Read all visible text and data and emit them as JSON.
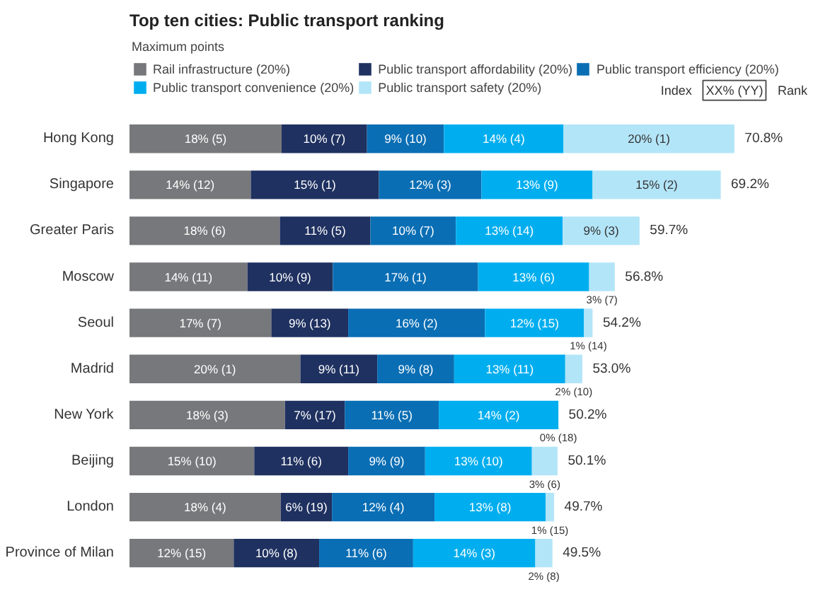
{
  "chart_data": {
    "type": "bar",
    "orientation": "horizontal",
    "stacked": true,
    "title": "Top ten cities: Public transport ranking",
    "legend_title": "Maximum points",
    "legend": "top",
    "categories": [
      "Hong Kong",
      "Singapore",
      "Greater Paris",
      "Moscow",
      "Seoul",
      "Madrid",
      "New York",
      "Beijing",
      "London",
      "Province of Milan"
    ],
    "series": [
      {
        "name": "Rail infrastructure (20%)",
        "color": "#77787b",
        "values": [
          17.8,
          14.2,
          17.6,
          13.8,
          16.6,
          20,
          18.2,
          14.6,
          17.7,
          12.2
        ],
        "value_labels": [
          "18% (5)",
          "14% (12)",
          "18% (6)",
          "14% (11)",
          "17% (7)",
          "20% (1)",
          "18% (3)",
          "15% (10)",
          "18% (4)",
          "12% (15)"
        ]
      },
      {
        "name": "Public transport affordability (20%)",
        "color": "#1f3160",
        "values": [
          10,
          15,
          10.6,
          10,
          9,
          9,
          7,
          11,
          6,
          10
        ],
        "value_labels": [
          "10% (7)",
          "15% (1)",
          "11% (5)",
          "10% (9)",
          "9% (13)",
          "9% (11)",
          "7% (17)",
          "11% (6)",
          "6% (19)",
          "10% (8)"
        ]
      },
      {
        "name": "Public transport efficiency (20%)",
        "color": "#0a6eb4",
        "values": [
          9,
          12,
          10,
          17,
          16,
          9,
          11,
          9,
          12,
          11
        ],
        "value_labels": [
          "9% (10)",
          "12% (3)",
          "10% (7)",
          "17% (1)",
          "16% (2)",
          "9% (8)",
          "11% (5)",
          "9% (9)",
          "12% (4)",
          "11% (6)"
        ]
      },
      {
        "name": "Public transport convenience (20%)",
        "color": "#00aeef",
        "values": [
          14,
          13,
          12.5,
          13,
          11.6,
          13,
          14,
          12.5,
          13,
          14.3
        ],
        "value_labels": [
          "14% (4)",
          "13% (9)",
          "13% (14)",
          "13% (6)",
          "12% (15)",
          "13% (11)",
          "14% (2)",
          "13% (10)",
          "13% (8)",
          "14% (3)"
        ]
      },
      {
        "name": "Public transport safety (20%)",
        "color": "#b3e5f8",
        "values": [
          20,
          15,
          9,
          3,
          1,
          2,
          0,
          3,
          1,
          2
        ],
        "value_labels": [
          "20% (1)",
          "15% (2)",
          "9% (3)",
          "3% (7)",
          "1% (14)",
          "2% (10)",
          "0% (18)",
          "3% (6)",
          "1% (15)",
          "2% (8)"
        ]
      }
    ],
    "totals": [
      "70.8%",
      "69.2%",
      "59.7%",
      "56.8%",
      "54.2%",
      "53.0%",
      "50.2%",
      "50.1%",
      "49.7%",
      "49.5%"
    ],
    "annotations": [
      "Index",
      "XX% (YY)",
      "Rank"
    ],
    "grid": false,
    "tick_labels": "y"
  }
}
